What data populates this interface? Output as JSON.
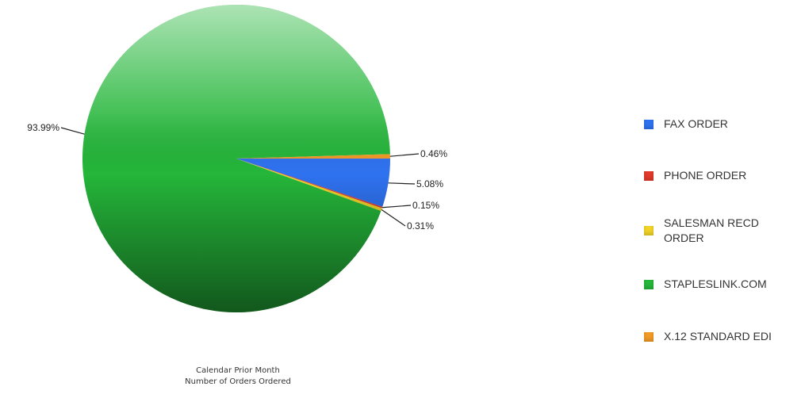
{
  "chart_data": {
    "type": "pie",
    "title_lines": [
      "Calendar Prior Month",
      "Number of Orders Ordered"
    ],
    "slices": [
      {
        "name": "FAX ORDER",
        "value": 5.08,
        "label": "5.08%",
        "color": "#2f72f0"
      },
      {
        "name": "PHONE ORDER",
        "value": 0.15,
        "label": "0.15%",
        "color": "#e23a2c"
      },
      {
        "name": "SALESMAN RECD ORDER",
        "value": 0.31,
        "label": "0.31%",
        "color": "#f2d327"
      },
      {
        "name": "STAPLESLINK.COM",
        "value": 93.99,
        "label": "93.99%",
        "color": "#25b63a"
      },
      {
        "name": "X.12 STANDARD EDI",
        "value": 0.46,
        "label": "0.46%",
        "color": "#f29a26"
      }
    ],
    "legend_position": "right"
  },
  "legend": {
    "items": [
      {
        "lines": [
          "FAX ORDER"
        ],
        "color": "#2f72f0"
      },
      {
        "lines": [
          "PHONE ORDER"
        ],
        "color": "#e23a2c"
      },
      {
        "lines": [
          "SALESMAN RECD",
          "ORDER"
        ],
        "color": "#f2d327"
      },
      {
        "lines": [
          "STAPLESLINK.COM"
        ],
        "color": "#25b63a"
      },
      {
        "lines": [
          "X.12 STANDARD EDI"
        ],
        "color": "#f29a26"
      }
    ]
  }
}
